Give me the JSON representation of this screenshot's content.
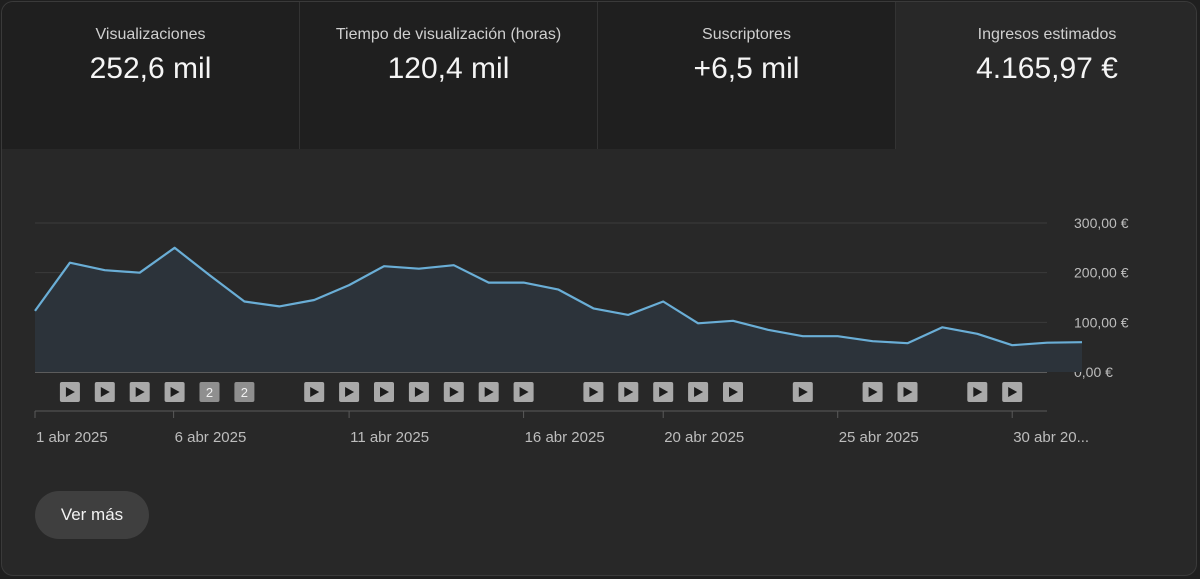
{
  "metrics": [
    {
      "label": "Visualizaciones",
      "value": "252,6 mil"
    },
    {
      "label": "Tiempo de visualización (horas)",
      "value": "120,4 mil"
    },
    {
      "label": "Suscriptores",
      "value": "+6,5 mil"
    },
    {
      "label": "Ingresos estimados",
      "value": "4.165,97 €"
    }
  ],
  "more_button": "Ver más",
  "colors": {
    "line": "#6aaed6",
    "fill": "#2c333a",
    "grid": "#3b3b3b",
    "baseline": "#909090",
    "marker": "#a8a8a8"
  },
  "chart_data": {
    "type": "area",
    "x": [
      "1 abr 2025",
      "2 abr 2025",
      "3 abr 2025",
      "4 abr 2025",
      "5 abr 2025",
      "6 abr 2025",
      "7 abr 2025",
      "8 abr 2025",
      "9 abr 2025",
      "10 abr 2025",
      "11 abr 2025",
      "12 abr 2025",
      "13 abr 2025",
      "14 abr 2025",
      "15 abr 2025",
      "16 abr 2025",
      "17 abr 2025",
      "18 abr 2025",
      "19 abr 2025",
      "20 abr 2025",
      "21 abr 2025",
      "22 abr 2025",
      "23 abr 2025",
      "24 abr 2025",
      "25 abr 2025",
      "26 abr 2025",
      "27 abr 2025",
      "28 abr 2025",
      "29 abr 2025",
      "30 abr 2025"
    ],
    "values": [
      220,
      205,
      200,
      250,
      195,
      142,
      132,
      145,
      175,
      213,
      208,
      215,
      180,
      180,
      166,
      128,
      115,
      142,
      98,
      103,
      85,
      72,
      72,
      62,
      58,
      90,
      77,
      54,
      59,
      60
    ],
    "first_value": 123,
    "ylim": [
      0,
      300
    ],
    "yticks": [
      "0,00 €",
      "100,00 €",
      "200,00 €",
      "300,00 €"
    ],
    "xtick_labels": [
      "1 abr 2025",
      "6 abr 2025",
      "11 abr 2025",
      "16 abr 2025",
      "20 abr 2025",
      "25 abr 2025",
      "30 abr 20..."
    ],
    "xtick_days": [
      1,
      5,
      10,
      15,
      19,
      24,
      29
    ],
    "markers": [
      {
        "day": 2,
        "type": "play"
      },
      {
        "day": 3,
        "type": "play"
      },
      {
        "day": 4,
        "type": "play"
      },
      {
        "day": 5,
        "type": "play"
      },
      {
        "day": 6,
        "type": "count",
        "label": "2"
      },
      {
        "day": 7,
        "type": "count",
        "label": "2"
      },
      {
        "day": 9,
        "type": "play"
      },
      {
        "day": 10,
        "type": "play"
      },
      {
        "day": 11,
        "type": "play"
      },
      {
        "day": 12,
        "type": "play"
      },
      {
        "day": 13,
        "type": "play"
      },
      {
        "day": 14,
        "type": "play"
      },
      {
        "day": 15,
        "type": "play"
      },
      {
        "day": 17,
        "type": "play"
      },
      {
        "day": 18,
        "type": "play"
      },
      {
        "day": 19,
        "type": "play"
      },
      {
        "day": 20,
        "type": "play"
      },
      {
        "day": 21,
        "type": "play"
      },
      {
        "day": 23,
        "type": "play"
      },
      {
        "day": 25,
        "type": "play"
      },
      {
        "day": 26,
        "type": "play"
      },
      {
        "day": 28,
        "type": "play"
      },
      {
        "day": 29,
        "type": "play"
      }
    ]
  }
}
